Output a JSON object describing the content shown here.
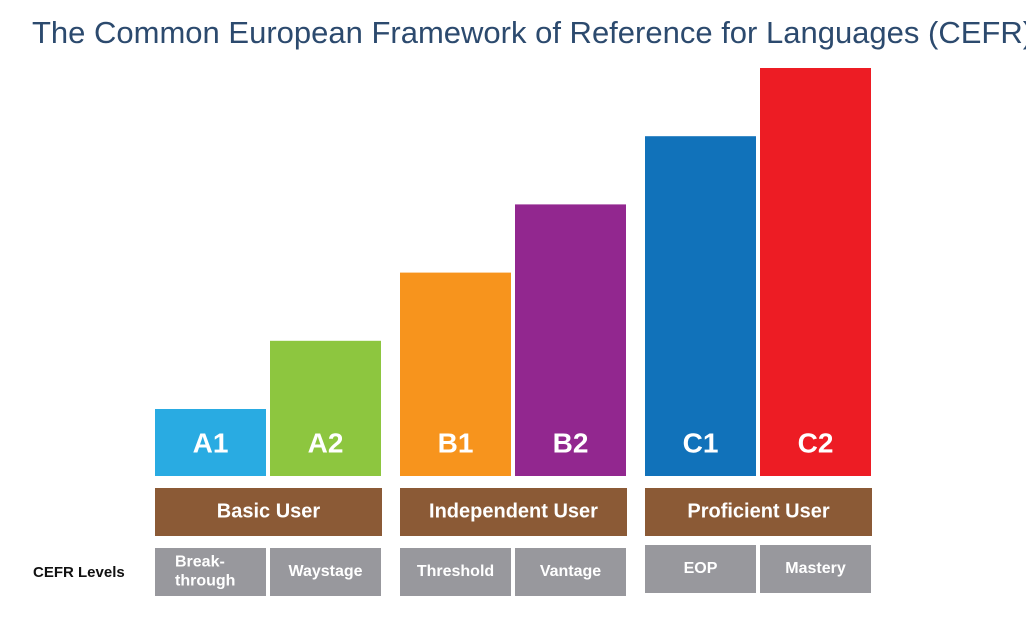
{
  "title": "The Common European Framework of Reference for Languages (CEFR)",
  "row_label": "CEFR Levels",
  "groups": [
    {
      "name": "Basic User",
      "levels": [
        {
          "code": "A1",
          "color": "#29abe2",
          "name": [
            "Break-",
            "through"
          ]
        },
        {
          "code": "A2",
          "color": "#8dc63f",
          "name": [
            "Waystage"
          ]
        }
      ]
    },
    {
      "name": "Independent User",
      "levels": [
        {
          "code": "B1",
          "color": "#f7941d",
          "name": [
            "Threshold"
          ]
        },
        {
          "code": "B2",
          "color": "#92278f",
          "name": [
            "Vantage"
          ]
        }
      ]
    },
    {
      "name": "Proficient User",
      "levels": [
        {
          "code": "C1",
          "color": "#1172ba",
          "name": [
            "EOP"
          ]
        },
        {
          "code": "C2",
          "color": "#ed1c24",
          "name": [
            "Mastery"
          ]
        }
      ]
    }
  ]
}
